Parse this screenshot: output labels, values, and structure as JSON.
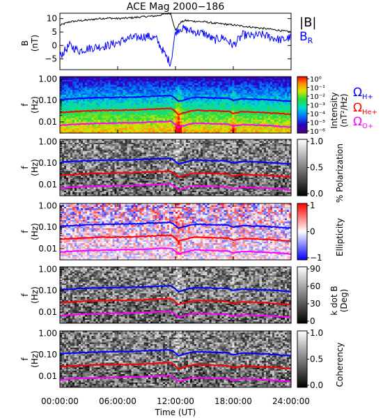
{
  "title": "ACE Mag 2000−186",
  "x_axis": {
    "label": "Time (UT)",
    "ticks": [
      "00:00:00",
      "06:00:00",
      "12:00:00",
      "18:00:00",
      "24:00:00"
    ],
    "tick_hours": [
      0,
      6,
      12,
      18,
      24
    ],
    "range_hours": [
      0,
      24
    ]
  },
  "colors": {
    "btotal": "#000000",
    "br": "#0000ff",
    "omega_h": "#0000ff",
    "omega_he": "#ff0000",
    "omega_o": "#ff00ff"
  },
  "top_panel": {
    "ylabel_line1": "B",
    "ylabel_line2": "(nT)",
    "yticks": [
      "10",
      "5",
      "0",
      "−5"
    ],
    "ytick_values": [
      10,
      5,
      0,
      -5
    ],
    "ylim": [
      -9,
      12
    ],
    "legend_btotal": "|B|",
    "legend_br_main": "B",
    "legend_br_sub": "R"
  },
  "freq_axis": {
    "ylabel_line1": "f",
    "ylabel_line2": "(Hz)",
    "ticks": [
      "1.00",
      "0.10",
      "0.01"
    ],
    "tick_values": [
      1.0,
      0.1,
      0.01
    ],
    "range": [
      0.003,
      1.3
    ],
    "scale": "log"
  },
  "panels": [
    {
      "id": "intensity",
      "colormap": "rainbow",
      "bar_ticks": [
        "10⁰",
        "10⁻¹",
        "10⁻²",
        "10⁻³",
        "10⁻⁴",
        "10⁻⁵",
        "10⁻⁶"
      ],
      "bar_label_line1": "Intensity",
      "bar_label_line2": "(nT²/Hz)"
    },
    {
      "id": "polarization",
      "colormap": "gray",
      "bar_ticks": [
        "1.0",
        "0.5",
        "0.0"
      ],
      "bar_label_line1": "% Polarization",
      "bar_label_line2": ""
    },
    {
      "id": "ellipticity",
      "colormap": "bwr",
      "bar_ticks": [
        "1",
        "0",
        "−1"
      ],
      "bar_label_line1": "Ellipticity",
      "bar_label_line2": ""
    },
    {
      "id": "kdotb",
      "colormap": "gray",
      "bar_ticks": [
        "90",
        "60",
        "30",
        "0"
      ],
      "bar_label_line1": "k dot B",
      "bar_label_line2": "(Deg)"
    },
    {
      "id": "coherency",
      "colormap": "gray",
      "bar_ticks": [
        "1.0",
        "0.5",
        "0.0"
      ],
      "bar_label_line1": "Coherency",
      "bar_label_line2": ""
    }
  ],
  "legend_cyclotron": {
    "omega_symbol": "Ω",
    "h_sub": "H+",
    "he_sub": "He+",
    "o_sub": "O+"
  },
  "chart_data": [
    {
      "type": "line",
      "title": "ACE Mag 2000−186",
      "xlabel": "Time (UT)",
      "ylabel": "B (nT)",
      "ylim": [
        -9,
        12
      ],
      "x": [
        0,
        1,
        2,
        3,
        4,
        5,
        6,
        7,
        8,
        9,
        10,
        11,
        11.5,
        12,
        12.5,
        13,
        14,
        15,
        16,
        17,
        18,
        19,
        20,
        21,
        22,
        23,
        24
      ],
      "series": [
        {
          "name": "|B|",
          "values": [
            7.5,
            8.8,
            9.2,
            9.5,
            10.0,
            10.2,
            10.0,
            10.2,
            10.5,
            10.8,
            11.0,
            11.8,
            12.0,
            5.5,
            8.5,
            9.3,
            9.0,
            8.8,
            8.3,
            8.0,
            7.6,
            7.2,
            6.8,
            6.4,
            6.0,
            5.5,
            5.0
          ]
        },
        {
          "name": "B_R",
          "values": [
            -4.0,
            0.0,
            -2.0,
            -1.0,
            -0.5,
            0.0,
            1.0,
            2.5,
            3.0,
            3.5,
            2.5,
            -4.0,
            -6.5,
            5.0,
            6.5,
            6.0,
            5.0,
            4.5,
            2.0,
            3.0,
            0.0,
            4.0,
            3.5,
            4.0,
            3.0,
            2.0,
            3.0
          ]
        }
      ]
    },
    {
      "type": "line",
      "ylabel": "f (Hz)",
      "yscale": "log",
      "ylim": [
        0.003,
        1.3
      ],
      "x": [
        0,
        2,
        4,
        6,
        8,
        10,
        11.5,
        12.3,
        14,
        16,
        17.5,
        18,
        19,
        20,
        22,
        24
      ],
      "series": [
        {
          "name": "ΩH+",
          "values": [
            0.11,
            0.125,
            0.135,
            0.14,
            0.145,
            0.16,
            0.17,
            0.09,
            0.14,
            0.13,
            0.125,
            0.1,
            0.12,
            0.115,
            0.105,
            0.09
          ]
        },
        {
          "name": "ΩHe+",
          "values": [
            0.0275,
            0.031,
            0.034,
            0.035,
            0.036,
            0.04,
            0.043,
            0.022,
            0.035,
            0.0325,
            0.031,
            0.025,
            0.03,
            0.029,
            0.026,
            0.0225
          ]
        },
        {
          "name": "ΩO+",
          "values": [
            0.0069,
            0.0078,
            0.0084,
            0.0088,
            0.0091,
            0.01,
            0.0106,
            0.0056,
            0.0088,
            0.0081,
            0.0078,
            0.0063,
            0.0075,
            0.0072,
            0.0066,
            0.0056
          ]
        }
      ]
    }
  ]
}
